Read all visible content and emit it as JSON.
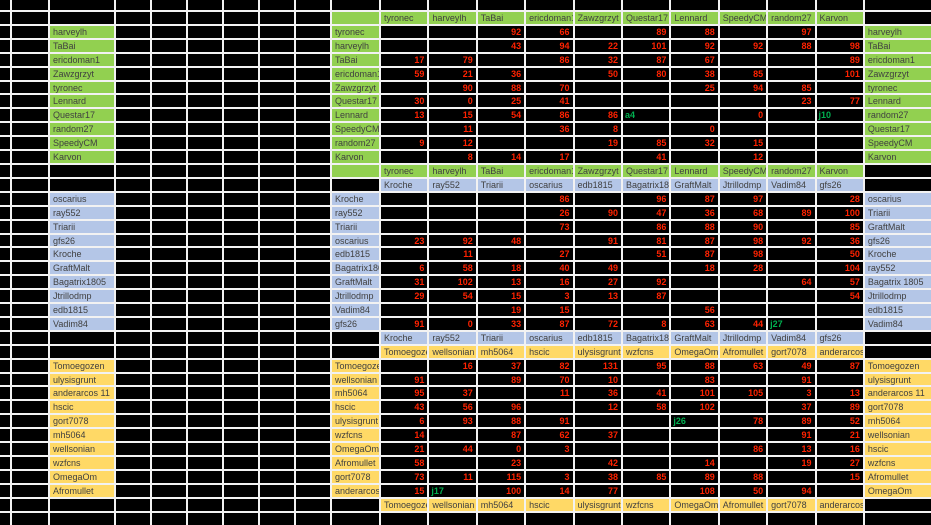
{
  "colors": {
    "grid_line": "#f2f2f2",
    "cell_bg": "#000000",
    "value_red": "#ff2200",
    "value_ref_green": "#00b050",
    "label_text": "#404040",
    "green": "#92d050",
    "blue": "#b4c6e7",
    "yellow": "#ffd966"
  },
  "sections": [
    {
      "group": "green-group",
      "color_class": "g",
      "label_col_in_band": true,
      "header": [
        "tyronec",
        "harveylh",
        "TaBai",
        "ericdoman1",
        "Zawzgrzyt",
        "Questar17",
        "Lennard",
        "SpeedyCM",
        "random27",
        "Karvon"
      ],
      "left": [
        "harveylh",
        "TaBai",
        "ericdoman1",
        "Zawzgrzyt",
        "tyronec",
        "Lennard",
        "Questar17",
        "random27",
        "SpeedyCM",
        "Karvon"
      ],
      "mid": [
        "tyronec",
        "harveylh",
        "TaBai",
        "ericdoman1",
        "Zawzgrzyt",
        "Questar17",
        "Lennard",
        "SpeedyCM",
        "random27",
        "Karvon"
      ],
      "right": [
        "harveylh",
        "TaBai",
        "ericdoman1",
        "Zawzgrzyt",
        "tyronec",
        "Lennard",
        "random27",
        "Questar17",
        "SpeedyCM",
        "Karvon"
      ],
      "rows": [
        [
          null,
          null,
          92,
          66,
          null,
          89,
          88,
          null,
          97,
          null
        ],
        [
          null,
          null,
          43,
          94,
          22,
          101,
          92,
          92,
          88,
          98
        ],
        [
          17,
          79,
          null,
          86,
          32,
          87,
          67,
          null,
          null,
          89
        ],
        [
          59,
          21,
          36,
          null,
          50,
          80,
          38,
          85,
          null,
          101
        ],
        [
          null,
          90,
          88,
          70,
          null,
          null,
          25,
          94,
          85,
          null
        ],
        [
          30,
          0,
          25,
          41,
          null,
          null,
          null,
          null,
          23,
          77
        ],
        [
          13,
          15,
          54,
          86,
          86,
          "a4",
          null,
          0,
          null,
          "j10"
        ],
        [
          null,
          11,
          null,
          36,
          8,
          null,
          0,
          null,
          null,
          null
        ],
        [
          9,
          12,
          null,
          null,
          19,
          85,
          32,
          15,
          null,
          null
        ],
        [
          null,
          8,
          14,
          17,
          null,
          41,
          null,
          12,
          null,
          null
        ]
      ]
    },
    {
      "group": "blue-group",
      "color_class": "b",
      "label_col_in_band": false,
      "header": [
        "Kroche",
        "ray552",
        "Triarii",
        "oscarius",
        "edb1815",
        "Bagatrix1805",
        "GraftMalt",
        "Jtrillodmp",
        "Vadim84",
        "gfs26"
      ],
      "left": [
        "oscarius",
        "ray552",
        "Triarii",
        "gfs26",
        "Kroche",
        "GraftMalt",
        "Bagatrix1805",
        "Jtrillodmp",
        "edb1815",
        "Vadim84"
      ],
      "mid": [
        "Kroche",
        "ray552",
        "Triarii",
        "oscarius",
        "edb1815",
        "Bagatrix1805",
        "GraftMalt",
        "Jtrillodmp",
        "Vadim84",
        "gfs26"
      ],
      "right": [
        "oscarius",
        "Triarii",
        "GraftMalt",
        "gfs26",
        "Kroche",
        "ray552",
        "Bagatrix 1805",
        "Jtrillodmp",
        "edb1815",
        "Vadim84"
      ],
      "rows": [
        [
          null,
          null,
          null,
          86,
          null,
          96,
          87,
          97,
          null,
          28
        ],
        [
          null,
          null,
          null,
          26,
          90,
          47,
          36,
          68,
          89,
          100
        ],
        [
          null,
          null,
          null,
          73,
          null,
          86,
          88,
          90,
          null,
          85
        ],
        [
          23,
          92,
          48,
          null,
          91,
          81,
          87,
          98,
          92,
          36
        ],
        [
          null,
          11,
          null,
          27,
          null,
          51,
          87,
          98,
          null,
          50
        ],
        [
          6,
          58,
          18,
          40,
          49,
          null,
          18,
          28,
          null,
          104
        ],
        [
          31,
          102,
          13,
          16,
          27,
          92,
          null,
          null,
          64,
          57
        ],
        [
          29,
          54,
          15,
          3,
          13,
          87,
          null,
          null,
          null,
          54
        ],
        [
          null,
          null,
          19,
          15,
          null,
          null,
          56,
          null,
          null,
          null
        ],
        [
          91,
          0,
          33,
          87,
          72,
          8,
          63,
          44,
          "j27",
          null
        ]
      ]
    },
    {
      "group": "yellow-group",
      "color_class": "y",
      "label_col_in_band": false,
      "header": [
        "Tomoegozen",
        "wellsonian",
        "mh5064",
        "hscic",
        "ulysisgrunt",
        "wzfcns",
        "OmegaOm",
        "Afromullet",
        "gort7078",
        "anderarcos"
      ],
      "left": [
        "Tomoegozen",
        "ulysisgrunt",
        "anderarcos 11",
        "hscic",
        "gort7078",
        "mh5064",
        "wellsonian",
        "wzfcns",
        "OmegaOm",
        "Afromullet"
      ],
      "mid": [
        "Tomoegozen",
        "wellsonian",
        "mh5064",
        "hscic",
        "ulysisgrunt",
        "wzfcns",
        "OmegaOm",
        "Afromullet",
        "gort7078",
        "anderarcos"
      ],
      "right": [
        "Tomoegozen",
        "ulysisgrunt",
        "anderarcos 11",
        "gort7078",
        "mh5064",
        "wellsonian",
        "hscic",
        "wzfcns",
        "Afromullet",
        "OmegaOm"
      ],
      "rows": [
        [
          null,
          16,
          37,
          82,
          131,
          95,
          88,
          63,
          49,
          87
        ],
        [
          91,
          null,
          89,
          70,
          10,
          null,
          83,
          null,
          91,
          null
        ],
        [
          95,
          37,
          null,
          11,
          36,
          41,
          101,
          105,
          3,
          13
        ],
        [
          43,
          56,
          96,
          null,
          12,
          58,
          102,
          null,
          37,
          89
        ],
        [
          6,
          93,
          88,
          91,
          null,
          null,
          "j26",
          78,
          89,
          52
        ],
        [
          14,
          null,
          87,
          62,
          37,
          null,
          null,
          null,
          91,
          21
        ],
        [
          21,
          44,
          0,
          3,
          null,
          null,
          null,
          86,
          13,
          16
        ],
        [
          58,
          null,
          23,
          null,
          42,
          null,
          14,
          null,
          19,
          27
        ],
        [
          73,
          11,
          115,
          3,
          38,
          85,
          89,
          88,
          null,
          15
        ],
        [
          15,
          "j17",
          100,
          14,
          77,
          null,
          108,
          50,
          94,
          null
        ]
      ]
    }
  ]
}
